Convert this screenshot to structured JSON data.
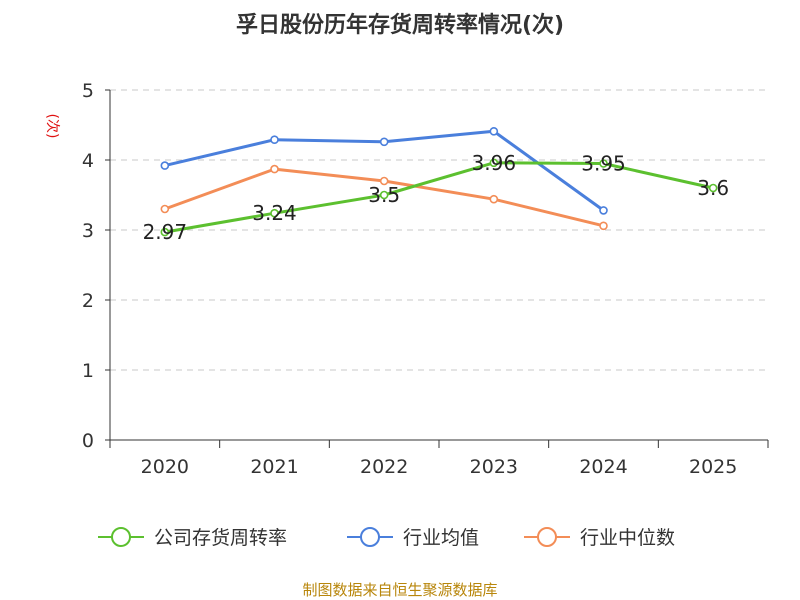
{
  "chart_data": {
    "type": "line",
    "title": "孚日股份历年存货周转率情况(次)",
    "ylabel": "(次)",
    "xlabel": "",
    "categories": [
      "2020",
      "2021",
      "2022",
      "2023",
      "2024",
      "2025"
    ],
    "ylim": [
      0,
      5
    ],
    "yticks": [
      0,
      1,
      2,
      3,
      4,
      5
    ],
    "grid": true,
    "legend_position": "bottom",
    "series": [
      {
        "name": "公司存货周转率",
        "color": "#5cc02f",
        "values": [
          2.97,
          3.24,
          3.5,
          3.96,
          3.95,
          3.6
        ],
        "labels": [
          "2.97",
          "3.24",
          "3.5",
          "3.96",
          "3.95",
          "3.6"
        ],
        "show_labels": true
      },
      {
        "name": "行业均值",
        "color": "#4a7fdc",
        "values": [
          3.92,
          4.29,
          4.26,
          4.41,
          3.28,
          null
        ],
        "show_labels": false
      },
      {
        "name": "行业中位数",
        "color": "#f38d57",
        "values": [
          3.3,
          3.87,
          3.7,
          3.44,
          3.06,
          null
        ],
        "show_labels": false
      }
    ],
    "source": "制图数据来自恒生聚源数据库"
  }
}
